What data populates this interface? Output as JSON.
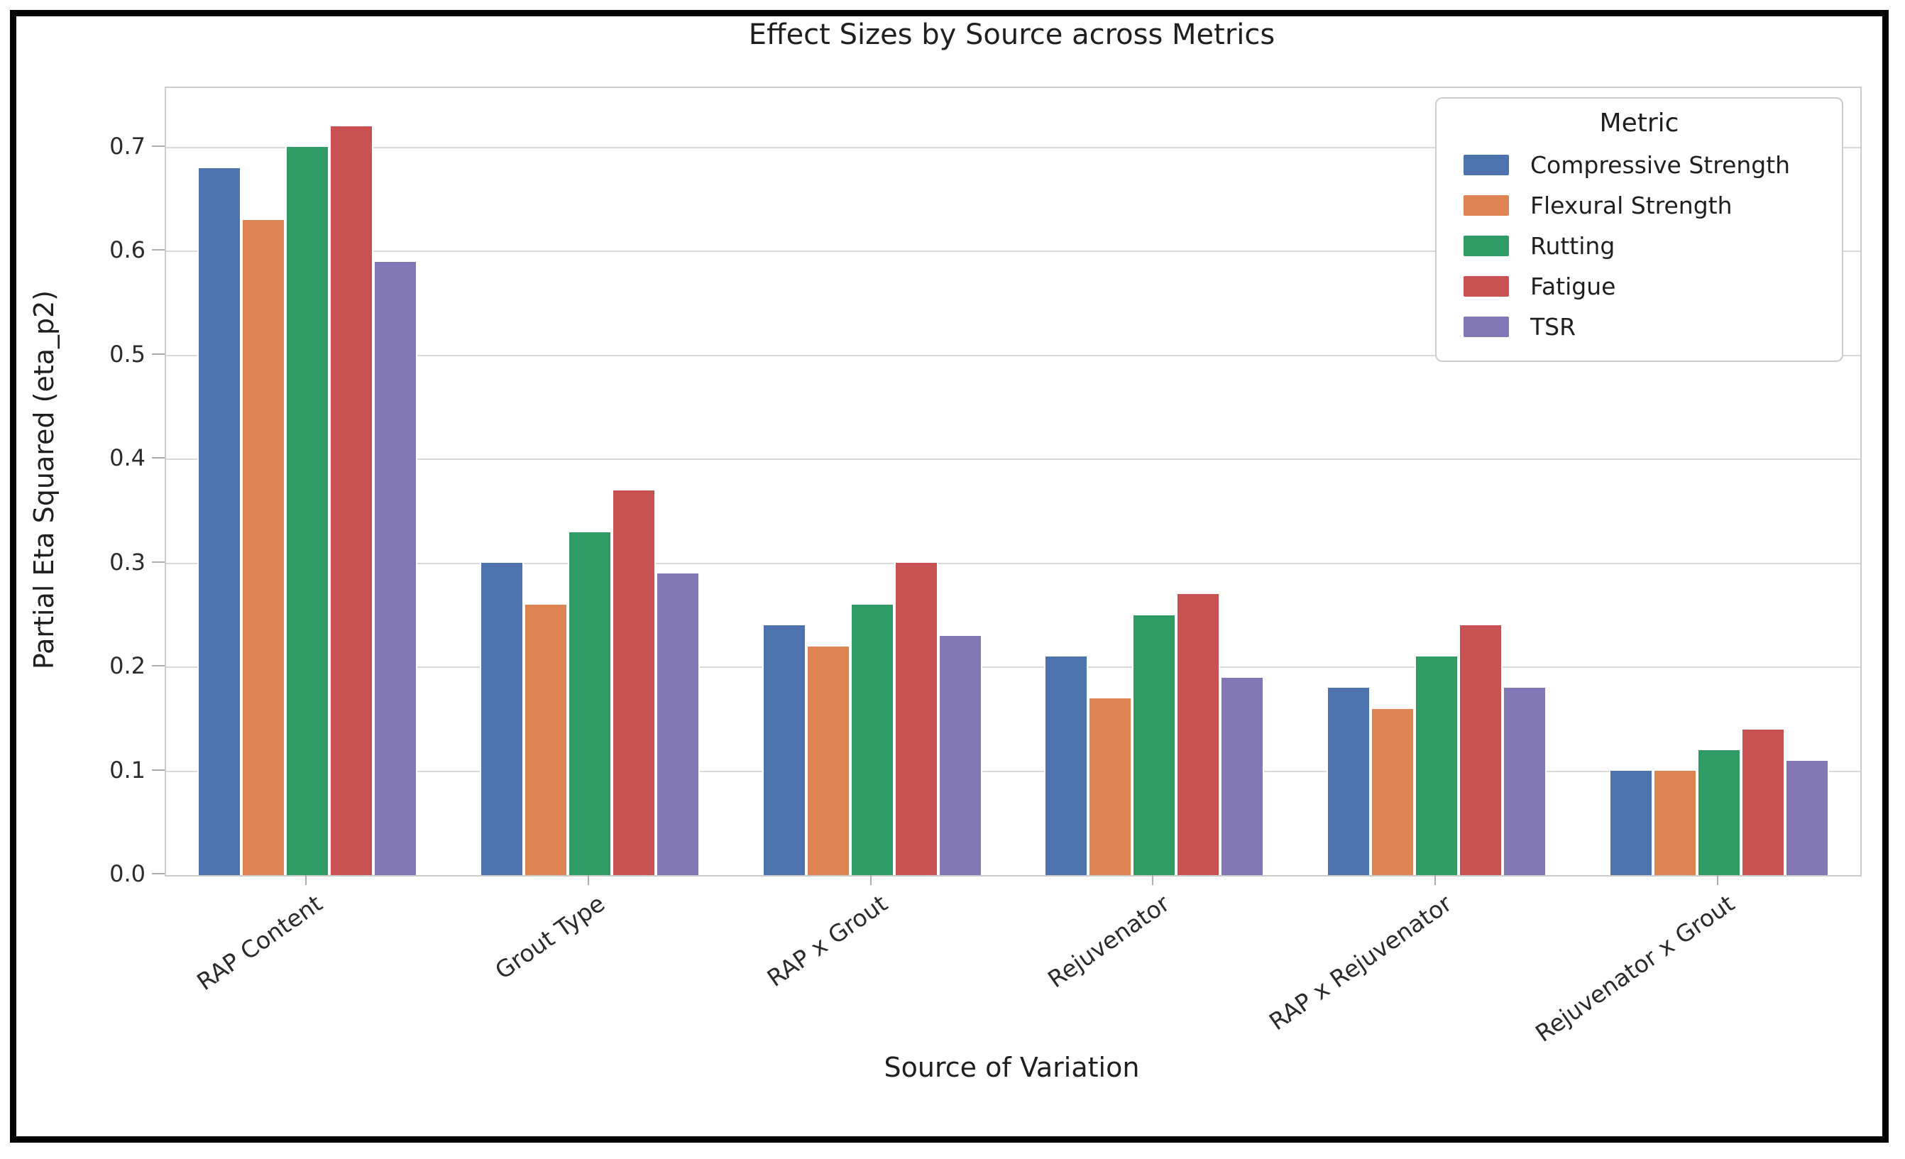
{
  "chart_data": {
    "type": "bar",
    "title": "Effect Sizes by Source across Metrics",
    "xlabel": "Source of Variation",
    "ylabel": "Partial Eta Squared (eta_p2)",
    "categories": [
      "RAP Content",
      "Grout Type",
      "RAP x Grout",
      "Rejuvenator",
      "RAP x Rejuvenator",
      "Rejuvenator x Grout"
    ],
    "series": [
      {
        "name": "Compressive Strength",
        "color": "#4C73AE",
        "values": [
          0.68,
          0.3,
          0.24,
          0.21,
          0.18,
          0.1
        ]
      },
      {
        "name": "Flexural Strength",
        "color": "#DE8452",
        "values": [
          0.63,
          0.26,
          0.22,
          0.17,
          0.16,
          0.1
        ]
      },
      {
        "name": "Rutting",
        "color": "#2E9C64",
        "values": [
          0.7,
          0.33,
          0.26,
          0.25,
          0.21,
          0.12
        ]
      },
      {
        "name": "Fatigue",
        "color": "#C85152",
        "values": [
          0.72,
          0.37,
          0.3,
          0.27,
          0.24,
          0.14
        ]
      },
      {
        "name": "TSR",
        "color": "#8277B5",
        "values": [
          0.59,
          0.29,
          0.23,
          0.19,
          0.18,
          0.11
        ]
      }
    ],
    "legend": {
      "title": "Metric",
      "position": "upper right"
    },
    "yticks": [
      0.0,
      0.1,
      0.2,
      0.3,
      0.4,
      0.5,
      0.6,
      0.7
    ],
    "ytick_labels": [
      "0.0",
      "0.1",
      "0.2",
      "0.3",
      "0.4",
      "0.5",
      "0.6",
      "0.7"
    ],
    "ylim": [
      0,
      0.757
    ],
    "grid": "horizontal",
    "gridline_color": "#d9d9d9",
    "background_color": "#ffffff"
  }
}
